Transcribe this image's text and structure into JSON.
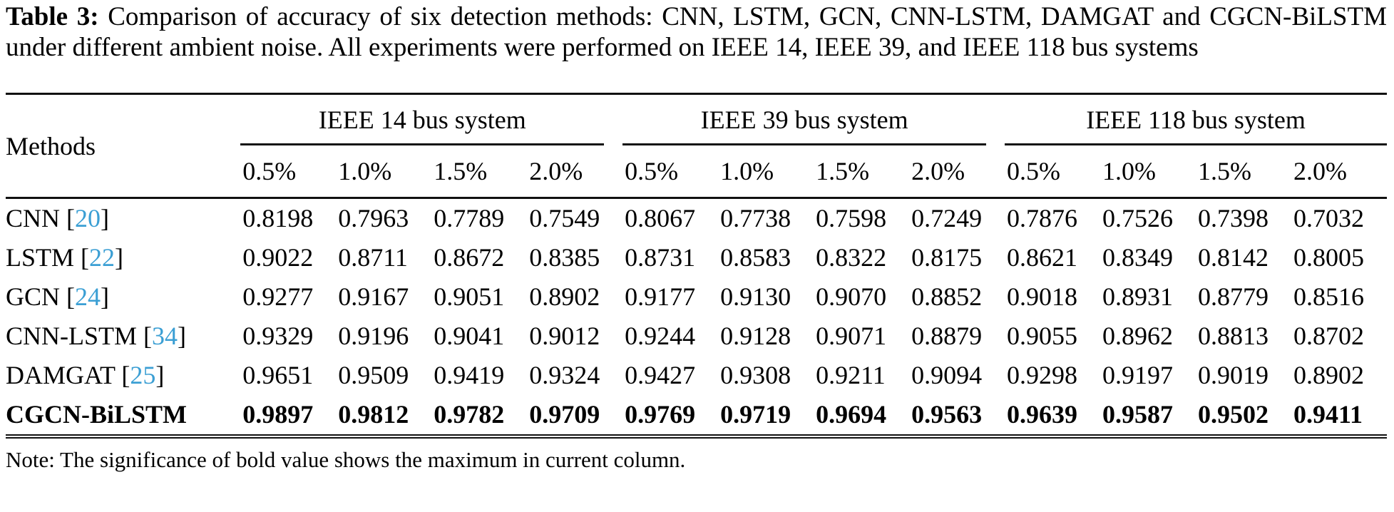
{
  "caption": {
    "label": "Table 3:",
    "text": "Comparison of accuracy of six detection methods: CNN, LSTM, GCN, CNN-LSTM, DAMGAT and CGCN-BiLSTM under different ambient noise. All experiments were performed on IEEE 14, IEEE 39, and IEEE 118 bus systems"
  },
  "table": {
    "methods_header": "Methods",
    "groups": [
      "IEEE 14 bus system",
      "IEEE 39 bus system",
      "IEEE 118 bus system"
    ],
    "noise_levels": [
      "0.5%",
      "1.0%",
      "1.5%",
      "2.0%"
    ],
    "rows": [
      {
        "method": "CNN",
        "cite": "20",
        "bold": false,
        "values": [
          "0.8198",
          "0.7963",
          "0.7789",
          "0.7549",
          "0.8067",
          "0.7738",
          "0.7598",
          "0.7249",
          "0.7876",
          "0.7526",
          "0.7398",
          "0.7032"
        ]
      },
      {
        "method": "LSTM",
        "cite": "22",
        "bold": false,
        "values": [
          "0.9022",
          "0.8711",
          "0.8672",
          "0.8385",
          "0.8731",
          "0.8583",
          "0.8322",
          "0.8175",
          "0.8621",
          "0.8349",
          "0.8142",
          "0.8005"
        ]
      },
      {
        "method": "GCN",
        "cite": "24",
        "bold": false,
        "values": [
          "0.9277",
          "0.9167",
          "0.9051",
          "0.8902",
          "0.9177",
          "0.9130",
          "0.9070",
          "0.8852",
          "0.9018",
          "0.8931",
          "0.8779",
          "0.8516"
        ]
      },
      {
        "method": "CNN-LSTM",
        "cite": "34",
        "bold": false,
        "values": [
          "0.9329",
          "0.9196",
          "0.9041",
          "0.9012",
          "0.9244",
          "0.9128",
          "0.9071",
          "0.8879",
          "0.9055",
          "0.8962",
          "0.8813",
          "0.8702"
        ]
      },
      {
        "method": "DAMGAT",
        "cite": "25",
        "bold": false,
        "values": [
          "0.9651",
          "0.9509",
          "0.9419",
          "0.9324",
          "0.9427",
          "0.9308",
          "0.9211",
          "0.9094",
          "0.9298",
          "0.9197",
          "0.9019",
          "0.8902"
        ]
      },
      {
        "method": "CGCN-BiLSTM",
        "cite": "",
        "bold": true,
        "values": [
          "0.9897",
          "0.9812",
          "0.9782",
          "0.9709",
          "0.9769",
          "0.9719",
          "0.9694",
          "0.9563",
          "0.9639",
          "0.9587",
          "0.9502",
          "0.9411"
        ]
      }
    ]
  },
  "note": "Note: The significance of bold value shows the maximum in current column.",
  "colors": {
    "citation_blue": "#3b9fd4",
    "text": "#000000",
    "background": "#ffffff"
  }
}
